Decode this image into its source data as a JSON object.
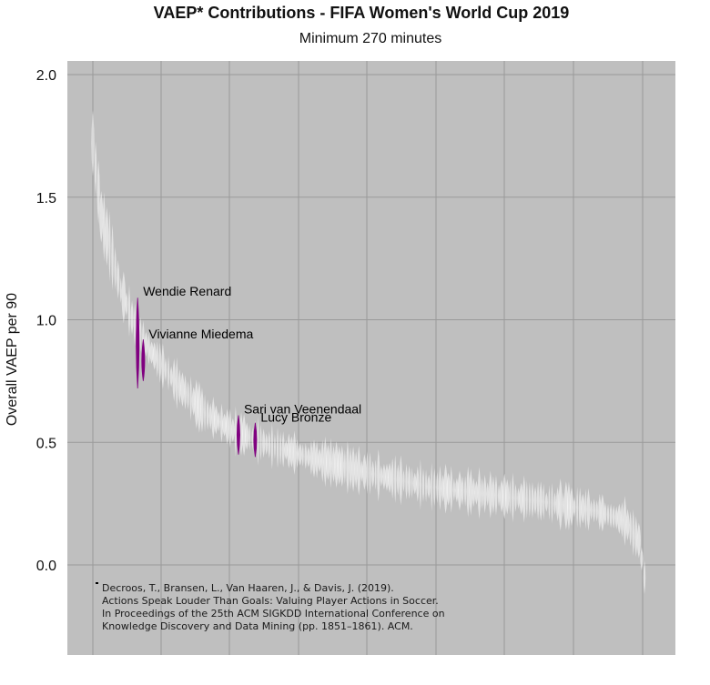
{
  "chart_data": {
    "type": "violin",
    "title": "VAEP* Contributions - FIFA Women's World Cup 2019",
    "subtitle": "Minimum 270 minutes",
    "ylabel": "Overall VAEP per 90",
    "xlabel": "",
    "ylim": [
      -0.37,
      2.05
    ],
    "yticks": [
      "2.0",
      "1.5",
      "1.0",
      "0.5",
      "0.0"
    ],
    "ytick_values": [
      2.0,
      1.5,
      1.0,
      0.5,
      0.0
    ],
    "grid": true,
    "background": "#bfbfbf",
    "grid_color": "#9a9a9a",
    "default_color": "#ffffff",
    "highlight_color": "#800080",
    "player_count": 198,
    "medians_estimate": {
      "description_points": [
        [
          0,
          1.72
        ],
        [
          3,
          1.42
        ],
        [
          6,
          1.3
        ],
        [
          10,
          1.12
        ],
        [
          15,
          0.98
        ],
        [
          20,
          0.88
        ],
        [
          30,
          0.74
        ],
        [
          40,
          0.62
        ],
        [
          50,
          0.55
        ],
        [
          60,
          0.5
        ],
        [
          80,
          0.43
        ],
        [
          100,
          0.37
        ],
        [
          120,
          0.32
        ],
        [
          140,
          0.29
        ],
        [
          160,
          0.26
        ],
        [
          180,
          0.22
        ],
        [
          190,
          0.18
        ],
        [
          195,
          0.1
        ],
        [
          197,
          -0.05
        ]
      ]
    },
    "highlighted": [
      {
        "name": "Wendie Renard",
        "index": 16,
        "center": 0.9,
        "low": 0.72,
        "high": 1.09
      },
      {
        "name": "Vivianne Miedema",
        "index": 18,
        "center": 0.83,
        "low": 0.75,
        "high": 0.92
      },
      {
        "name": "Sari van Veenendaal",
        "index": 52,
        "center": 0.53,
        "low": 0.45,
        "high": 0.61
      },
      {
        "name": "Lucy Bronze",
        "index": 58,
        "center": 0.51,
        "low": 0.44,
        "high": 0.58
      }
    ],
    "footnote": [
      "Decroos, T., Bransen, L., Van Haaren, J., & Davis, J. (2019).",
      "Actions Speak Louder Than Goals: Valuing Player Actions in Soccer.",
      "In Proceedings of the 25th ACM SIGKDD International Conference on",
      "Knowledge Discovery and Data Mining (pp. 1851–1861). ACM."
    ]
  }
}
